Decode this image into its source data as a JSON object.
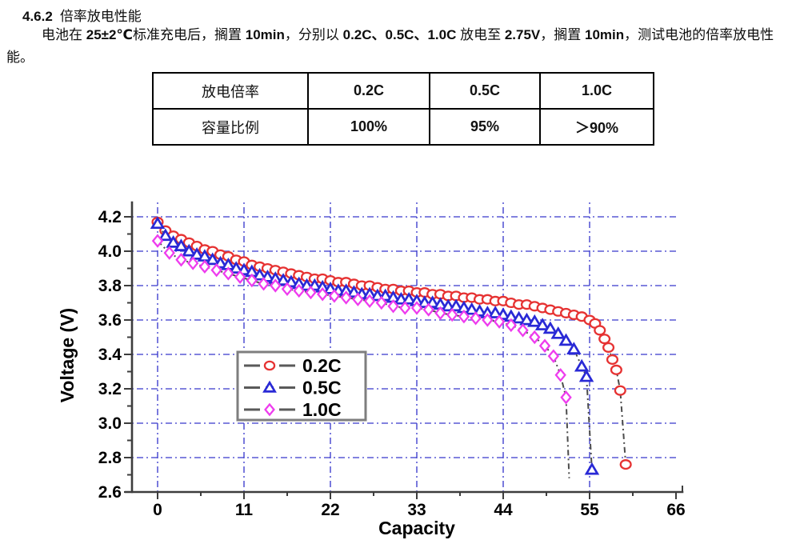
{
  "document": {
    "heading_number": "4.6.2",
    "heading_title": "倍率放电性能",
    "paragraph_runs": [
      "电池在 ",
      "25±2℃",
      "标准充电后，搁置 ",
      "10min",
      "，分别以 ",
      "0.2C、0.5C、1.0C",
      " 放电至 ",
      "2.75V",
      "，搁置 ",
      "10min",
      "，测试电池的倍率放电性能。"
    ]
  },
  "table": {
    "rows": [
      {
        "label": "放电倍率",
        "values": [
          "0.2C",
          "0.5C",
          "1.0C"
        ]
      },
      {
        "label": "容量比例",
        "values": [
          "100%",
          "95%",
          "＞90%"
        ]
      }
    ]
  },
  "chart_data": {
    "type": "line",
    "title": "",
    "xlabel": "Capacity",
    "ylabel": "Voltage (V)",
    "xlim": [
      0,
      66
    ],
    "ylim": [
      2.6,
      4.2
    ],
    "x_ticks": [
      0,
      11,
      22,
      33,
      44,
      55,
      66
    ],
    "y_ticks": [
      2.6,
      2.8,
      3.0,
      3.2,
      3.4,
      3.6,
      3.8,
      4.0,
      4.2
    ],
    "grid": true,
    "grid_color": "#3c3ccd",
    "line_color": "#4c4c4c",
    "legend_position": "inside-center-left",
    "series": [
      {
        "name": "0.2C",
        "marker": "circle",
        "color": "#e63232",
        "points": [
          [
            0,
            4.17
          ],
          [
            1,
            4.12
          ],
          [
            2,
            4.09
          ],
          [
            3,
            4.07
          ],
          [
            4,
            4.05
          ],
          [
            5,
            4.03
          ],
          [
            6,
            4.01
          ],
          [
            7,
            4.0
          ],
          [
            8,
            3.98
          ],
          [
            9,
            3.97
          ],
          [
            10,
            3.95
          ],
          [
            11,
            3.94
          ],
          [
            12,
            3.92
          ],
          [
            13,
            3.91
          ],
          [
            14,
            3.9
          ],
          [
            15,
            3.89
          ],
          [
            16,
            3.88
          ],
          [
            17,
            3.87
          ],
          [
            18,
            3.86
          ],
          [
            19,
            3.85
          ],
          [
            20,
            3.84
          ],
          [
            21,
            3.84
          ],
          [
            22,
            3.83
          ],
          [
            23,
            3.82
          ],
          [
            24,
            3.82
          ],
          [
            25,
            3.81
          ],
          [
            26,
            3.8
          ],
          [
            27,
            3.8
          ],
          [
            28,
            3.79
          ],
          [
            29,
            3.78
          ],
          [
            30,
            3.78
          ],
          [
            31,
            3.77
          ],
          [
            32,
            3.77
          ],
          [
            33,
            3.76
          ],
          [
            34,
            3.76
          ],
          [
            35,
            3.75
          ],
          [
            36,
            3.75
          ],
          [
            37,
            3.74
          ],
          [
            38,
            3.74
          ],
          [
            39,
            3.73
          ],
          [
            40,
            3.73
          ],
          [
            41,
            3.72
          ],
          [
            42,
            3.72
          ],
          [
            43,
            3.71
          ],
          [
            44,
            3.71
          ],
          [
            45,
            3.7
          ],
          [
            46,
            3.69
          ],
          [
            47,
            3.69
          ],
          [
            48,
            3.68
          ],
          [
            49,
            3.67
          ],
          [
            50,
            3.66
          ],
          [
            51,
            3.65
          ],
          [
            52,
            3.64
          ],
          [
            53,
            3.63
          ],
          [
            54,
            3.62
          ],
          [
            55,
            3.6
          ],
          [
            55.7,
            3.58
          ],
          [
            56.3,
            3.54
          ],
          [
            56.9,
            3.49
          ],
          [
            57.4,
            3.44
          ],
          [
            57.9,
            3.37
          ],
          [
            58.4,
            3.31
          ],
          [
            58.9,
            3.19
          ],
          [
            59.6,
            2.76
          ]
        ]
      },
      {
        "name": "0.5C",
        "marker": "triangle",
        "color": "#2929d6",
        "points": [
          [
            0,
            4.16
          ],
          [
            1,
            4.09
          ],
          [
            2,
            4.05
          ],
          [
            3,
            4.03
          ],
          [
            4,
            4.0
          ],
          [
            5,
            3.98
          ],
          [
            6,
            3.97
          ],
          [
            7,
            3.95
          ],
          [
            8,
            3.93
          ],
          [
            9,
            3.92
          ],
          [
            10,
            3.9
          ],
          [
            11,
            3.89
          ],
          [
            12,
            3.88
          ],
          [
            13,
            3.86
          ],
          [
            14,
            3.85
          ],
          [
            15,
            3.84
          ],
          [
            16,
            3.83
          ],
          [
            17,
            3.82
          ],
          [
            18,
            3.81
          ],
          [
            19,
            3.8
          ],
          [
            20,
            3.8
          ],
          [
            21,
            3.79
          ],
          [
            22,
            3.78
          ],
          [
            23,
            3.77
          ],
          [
            24,
            3.77
          ],
          [
            25,
            3.76
          ],
          [
            26,
            3.75
          ],
          [
            27,
            3.75
          ],
          [
            28,
            3.74
          ],
          [
            29,
            3.74
          ],
          [
            30,
            3.73
          ],
          [
            31,
            3.72
          ],
          [
            32,
            3.72
          ],
          [
            33,
            3.71
          ],
          [
            34,
            3.7
          ],
          [
            35,
            3.7
          ],
          [
            36,
            3.69
          ],
          [
            37,
            3.68
          ],
          [
            38,
            3.68
          ],
          [
            39,
            3.67
          ],
          [
            40,
            3.66
          ],
          [
            41,
            3.65
          ],
          [
            42,
            3.64
          ],
          [
            43,
            3.64
          ],
          [
            44,
            3.63
          ],
          [
            45,
            3.62
          ],
          [
            46,
            3.61
          ],
          [
            47,
            3.6
          ],
          [
            48,
            3.59
          ],
          [
            49,
            3.57
          ],
          [
            50,
            3.55
          ],
          [
            51,
            3.52
          ],
          [
            52,
            3.48
          ],
          [
            53,
            3.43
          ],
          [
            54,
            3.33
          ],
          [
            54.6,
            3.27
          ],
          [
            55.3,
            2.73
          ]
        ]
      },
      {
        "name": "1.0C",
        "marker": "diamond",
        "color": "#ee3cee",
        "points": [
          [
            0,
            4.06
          ],
          [
            1.5,
            3.99
          ],
          [
            3,
            3.95
          ],
          [
            4.5,
            3.93
          ],
          [
            6,
            3.91
          ],
          [
            7.5,
            3.89
          ],
          [
            9,
            3.87
          ],
          [
            10.5,
            3.85
          ],
          [
            12,
            3.83
          ],
          [
            13.5,
            3.81
          ],
          [
            15,
            3.8
          ],
          [
            16.5,
            3.78
          ],
          [
            18,
            3.77
          ],
          [
            19.5,
            3.76
          ],
          [
            21,
            3.75
          ],
          [
            22.5,
            3.74
          ],
          [
            24,
            3.73
          ],
          [
            25.5,
            3.72
          ],
          [
            27,
            3.71
          ],
          [
            28.5,
            3.7
          ],
          [
            30,
            3.68
          ],
          [
            31.5,
            3.67
          ],
          [
            33,
            3.67
          ],
          [
            34.5,
            3.66
          ],
          [
            36,
            3.64
          ],
          [
            37.5,
            3.63
          ],
          [
            39,
            3.62
          ],
          [
            40.5,
            3.61
          ],
          [
            42,
            3.6
          ],
          [
            43.5,
            3.59
          ],
          [
            45,
            3.57
          ],
          [
            46.5,
            3.54
          ],
          [
            48,
            3.5
          ],
          [
            49.3,
            3.45
          ],
          [
            50.4,
            3.39
          ],
          [
            51.3,
            3.28
          ],
          [
            52,
            3.15
          ]
        ],
        "tail": [
          52.4,
          2.68
        ]
      }
    ]
  }
}
